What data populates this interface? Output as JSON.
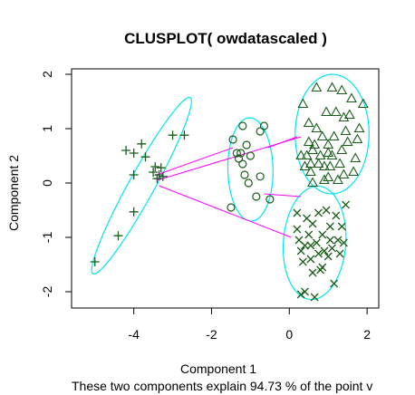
{
  "chart_data": {
    "type": "scatter",
    "title": "CLUSPLOT( owdatascaled )",
    "xlabel": "Component 1",
    "ylabel": "Component 2",
    "subtitle": "These two components explain 94.73 % of the point v",
    "xlim": [
      -5.6,
      2.3
    ],
    "ylim": [
      -2.3,
      2.1
    ],
    "xticks": [
      -4,
      -2,
      0,
      2
    ],
    "xtick_labels": [
      "-4",
      "-2",
      "0",
      "2"
    ],
    "yticks": [
      -2,
      -1,
      0,
      1,
      2
    ],
    "ytick_labels": [
      "-2",
      "-1",
      "0",
      "1",
      "2"
    ],
    "grid": false,
    "colors": {
      "points": "#1a5e1a",
      "ellipse": "#00e5ee",
      "links": "#ff00ff",
      "frame": "#000000"
    },
    "clusters": [
      {
        "marker": "plus",
        "center": [
          -3.8,
          -0.05
        ],
        "ellipse": {
          "a": 2.05,
          "b": 0.3,
          "angle_deg": 52
        },
        "points": [
          [
            -5.0,
            -1.45
          ],
          [
            -4.4,
            -0.97
          ],
          [
            -4.2,
            0.6
          ],
          [
            -4.0,
            0.15
          ],
          [
            -4.0,
            0.55
          ],
          [
            -4.0,
            -0.53
          ],
          [
            -3.8,
            0.72
          ],
          [
            -3.7,
            0.48
          ],
          [
            -3.5,
            0.2
          ],
          [
            -3.45,
            0.3
          ],
          [
            -3.4,
            0.08
          ],
          [
            -3.35,
            0.15
          ],
          [
            -3.3,
            0.28
          ],
          [
            -3.25,
            0.12
          ],
          [
            -3.0,
            0.88
          ],
          [
            -2.7,
            0.88
          ]
        ]
      },
      {
        "marker": "circle",
        "center": [
          -1.0,
          0.25
        ],
        "ellipse": {
          "a": 0.95,
          "b": 0.58,
          "angle_deg": 92
        },
        "points": [
          [
            -1.5,
            -0.45
          ],
          [
            -1.45,
            0.8
          ],
          [
            -1.35,
            0.55
          ],
          [
            -1.3,
            0.45
          ],
          [
            -1.25,
            0.55
          ],
          [
            -1.2,
            1.05
          ],
          [
            -1.2,
            0.35
          ],
          [
            -1.15,
            0.15
          ],
          [
            -1.1,
            0.7
          ],
          [
            -1.05,
            0.0
          ],
          [
            -1.0,
            0.5
          ],
          [
            -0.85,
            -0.25
          ],
          [
            -0.75,
            0.12
          ],
          [
            -0.65,
            1.05
          ],
          [
            -0.5,
            -0.3
          ],
          [
            -0.75,
            0.95
          ]
        ]
      },
      {
        "marker": "triangle",
        "center": [
          1.1,
          0.9
        ],
        "ellipse": {
          "a": 1.1,
          "b": 0.95,
          "angle_deg": 88
        },
        "points": [
          [
            0.35,
            1.45
          ],
          [
            0.3,
            0.5
          ],
          [
            0.4,
            0.3
          ],
          [
            0.45,
            0.5
          ],
          [
            0.5,
            0.75
          ],
          [
            0.5,
            1.1
          ],
          [
            0.55,
            0.2
          ],
          [
            0.6,
            0.0
          ],
          [
            0.6,
            0.6
          ],
          [
            0.65,
            0.7
          ],
          [
            0.7,
            1.0
          ],
          [
            0.75,
            0.35
          ],
          [
            0.8,
            0.5
          ],
          [
            0.85,
            0.85
          ],
          [
            0.9,
            0.05
          ],
          [
            0.9,
            0.3
          ],
          [
            0.95,
            1.3
          ],
          [
            1.0,
            0.1
          ],
          [
            1.0,
            0.7
          ],
          [
            1.05,
            0.3
          ],
          [
            1.1,
            0.5
          ],
          [
            1.15,
            0.85
          ],
          [
            1.2,
            1.3
          ],
          [
            1.25,
            0.05
          ],
          [
            1.3,
            0.35
          ],
          [
            1.35,
            0.6
          ],
          [
            1.35,
            1.7
          ],
          [
            1.4,
            0.15
          ],
          [
            1.45,
            0.95
          ],
          [
            1.5,
            0.75
          ],
          [
            1.55,
            1.25
          ],
          [
            1.6,
            1.55
          ],
          [
            1.65,
            0.2
          ],
          [
            1.7,
            0.45
          ],
          [
            1.75,
            0.8
          ],
          [
            1.8,
            1.0
          ],
          [
            1.9,
            1.45
          ],
          [
            1.1,
            1.75
          ],
          [
            0.7,
            1.75
          ],
          [
            1.4,
            1.2
          ],
          [
            0.55,
            0.35
          ],
          [
            1.0,
            0.55
          ]
        ]
      },
      {
        "marker": "cross",
        "center": [
          0.65,
          -1.1
        ],
        "ellipse": {
          "a": 1.05,
          "b": 0.8,
          "angle_deg": 80
        },
        "points": [
          [
            0.2,
            -0.55
          ],
          [
            0.2,
            -0.85
          ],
          [
            0.25,
            -1.05
          ],
          [
            0.3,
            -1.25
          ],
          [
            0.3,
            -2.05
          ],
          [
            0.35,
            -1.45
          ],
          [
            0.4,
            -1.15
          ],
          [
            0.4,
            -2.0
          ],
          [
            0.45,
            -0.65
          ],
          [
            0.5,
            -0.95
          ],
          [
            0.55,
            -1.4
          ],
          [
            0.6,
            -0.75
          ],
          [
            0.6,
            -1.65
          ],
          [
            0.65,
            -2.1
          ],
          [
            0.7,
            -1.1
          ],
          [
            0.75,
            -1.3
          ],
          [
            0.75,
            -0.55
          ],
          [
            0.8,
            -1.6
          ],
          [
            0.85,
            -0.95
          ],
          [
            0.9,
            -1.25
          ],
          [
            0.95,
            -0.5
          ],
          [
            1.0,
            -1.35
          ],
          [
            1.05,
            -0.8
          ],
          [
            1.05,
            -1.05
          ],
          [
            1.1,
            -1.2
          ],
          [
            1.15,
            -1.85
          ],
          [
            1.2,
            -0.6
          ],
          [
            1.25,
            -1.05
          ],
          [
            1.3,
            -1.3
          ],
          [
            1.35,
            -0.8
          ],
          [
            1.4,
            -1.1
          ],
          [
            1.45,
            -0.4
          ],
          [
            0.55,
            -1.15
          ],
          [
            0.85,
            -1.55
          ]
        ]
      }
    ],
    "links": [
      {
        "from": [
          -3.45,
          0.14
        ],
        "to": [
          -1.45,
          0.65
        ]
      },
      {
        "from": [
          -3.4,
          0.05
        ],
        "to": [
          0.3,
          0.85
        ]
      },
      {
        "from": [
          -3.35,
          -0.05
        ],
        "to": [
          0.05,
          -1.0
        ]
      },
      {
        "from": [
          -0.55,
          0.65
        ],
        "to": [
          0.2,
          0.85
        ]
      },
      {
        "from": [
          -0.65,
          -0.2
        ],
        "to": [
          0.3,
          -0.25
        ]
      }
    ]
  }
}
